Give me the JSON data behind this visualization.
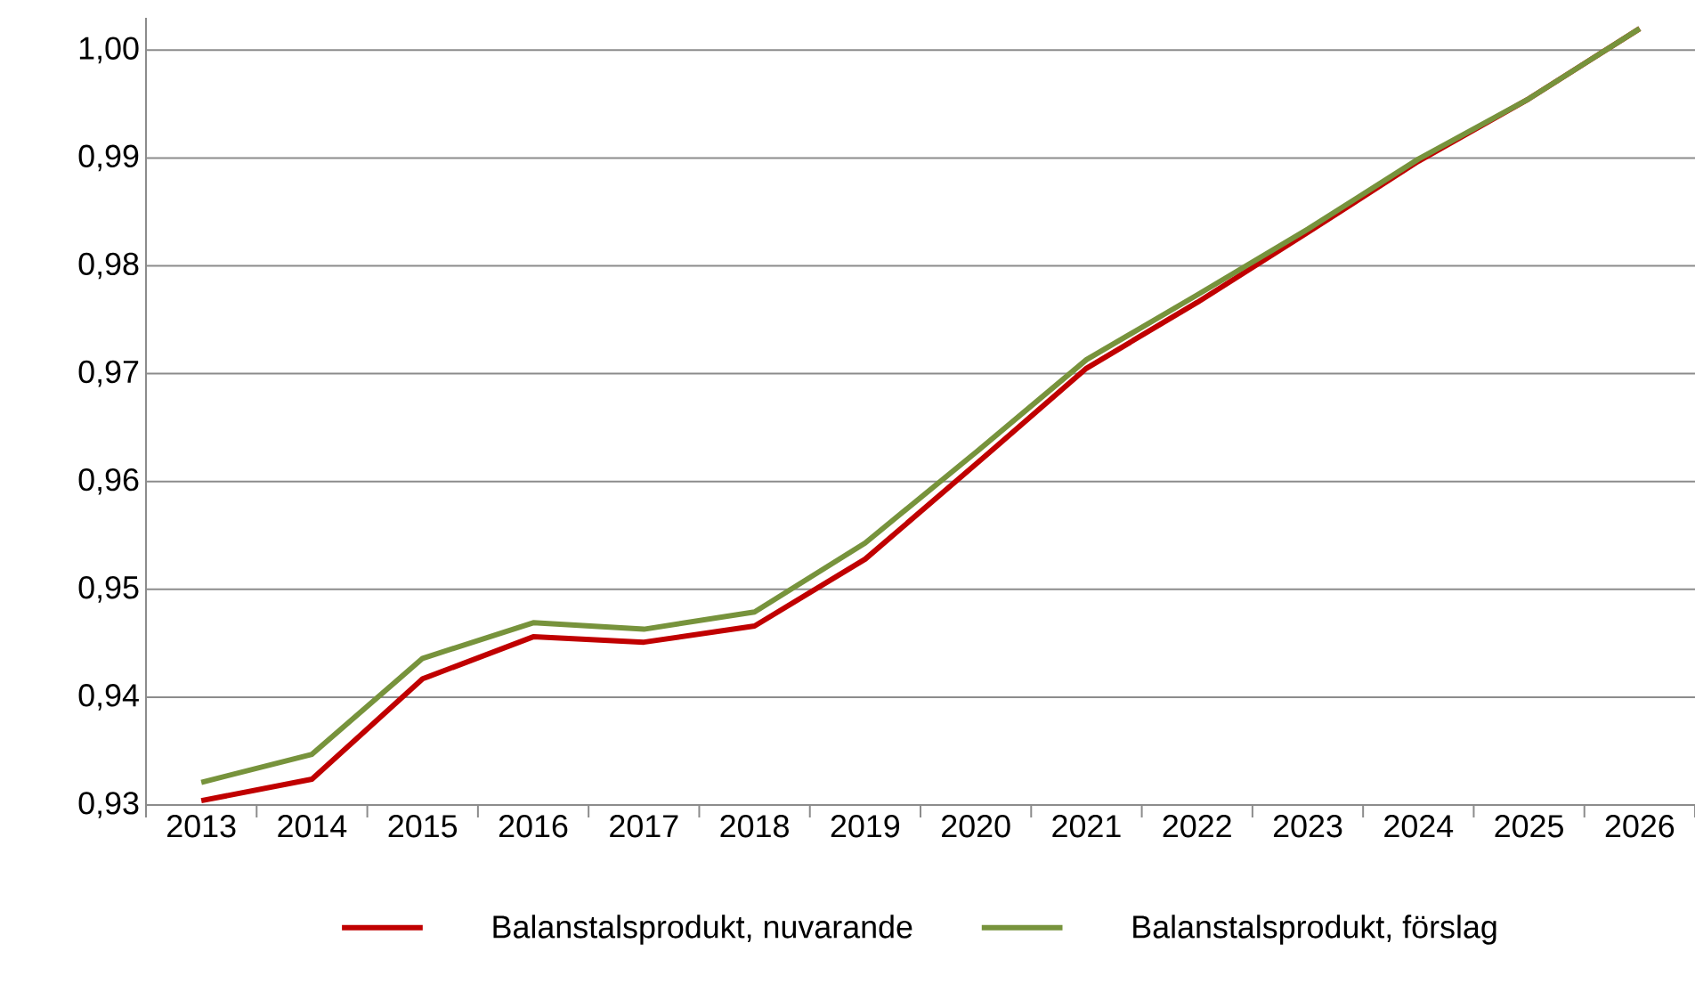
{
  "chart_data": {
    "type": "line",
    "categories": [
      "2013",
      "2014",
      "2015",
      "2016",
      "2017",
      "2018",
      "2019",
      "2020",
      "2021",
      "2022",
      "2023",
      "2024",
      "2025",
      "2026"
    ],
    "series": [
      {
        "name": "Balanstalsprodukt, nuvarande",
        "color": "#c00000",
        "values": [
          0.9304,
          0.9324,
          0.9417,
          0.9456,
          0.9451,
          0.9466,
          0.9528,
          0.9616,
          0.9705,
          0.9766,
          0.9831,
          0.9897,
          0.9955,
          1.002
        ]
      },
      {
        "name": "Balanstalsprodukt, förslag",
        "color": "#77933c",
        "values": [
          0.9321,
          0.9347,
          0.9436,
          0.9469,
          0.9463,
          0.9479,
          0.9543,
          0.9627,
          0.9713,
          0.9773,
          0.9834,
          0.9899,
          0.9955,
          1.002
        ]
      }
    ],
    "ylim": [
      0.93,
      1.003
    ],
    "yticks": [
      {
        "value": 0.93,
        "label": "0,93"
      },
      {
        "value": 0.94,
        "label": "0,94"
      },
      {
        "value": 0.95,
        "label": "0,95"
      },
      {
        "value": 0.96,
        "label": "0,96"
      },
      {
        "value": 0.97,
        "label": "0,97"
      },
      {
        "value": 0.98,
        "label": "0,98"
      },
      {
        "value": 0.99,
        "label": "0,99"
      },
      {
        "value": 1.0,
        "label": "1,00"
      }
    ],
    "grid": "y",
    "legend": "bottom"
  }
}
